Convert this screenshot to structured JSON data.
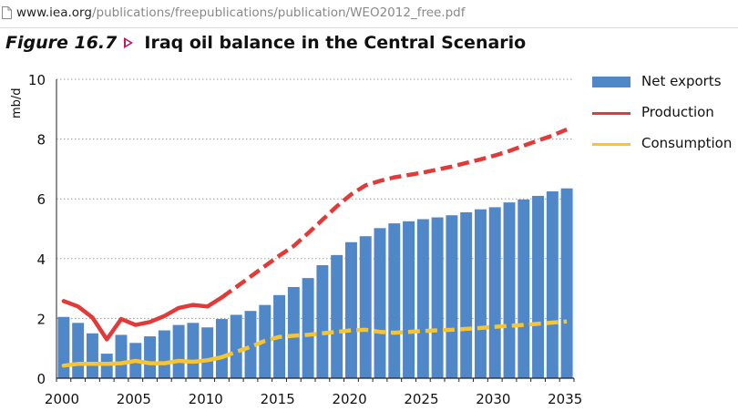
{
  "browser": {
    "url_host": "www.iea.org",
    "url_path": "/publications/freepublications/publication/WEO2012_free.pdf"
  },
  "figure": {
    "label": "Figure 16.7",
    "title": "Iraq oil balance in the Central Scenario"
  },
  "legend": {
    "net_exports": "Net exports",
    "production": "Production",
    "consumption": "Consumption"
  },
  "colors": {
    "net_exports": "#4f87c8",
    "production": "#e23a38",
    "consumption": "#f6c531",
    "figure_arrow": "#c2185b"
  },
  "chart_data": {
    "type": "bar",
    "title": "Iraq oil balance in the Central Scenario",
    "ylabel": "mb/d",
    "xlabel": "",
    "ylim": [
      0,
      10
    ],
    "yticks": [
      0,
      2,
      4,
      6,
      8,
      10
    ],
    "xticks": [
      2000,
      2005,
      2010,
      2015,
      2020,
      2025,
      2030,
      2035
    ],
    "grid": "horizontal dotted",
    "legend_position": "right",
    "x": [
      2000,
      2001,
      2002,
      2003,
      2004,
      2005,
      2006,
      2007,
      2008,
      2009,
      2010,
      2011,
      2012,
      2013,
      2014,
      2015,
      2016,
      2017,
      2018,
      2019,
      2020,
      2021,
      2022,
      2023,
      2024,
      2025,
      2026,
      2027,
      2028,
      2029,
      2030,
      2031,
      2032,
      2033,
      2034,
      2035
    ],
    "series": [
      {
        "name": "Net exports",
        "type": "bar",
        "values": [
          2.05,
          1.85,
          1.5,
          0.82,
          1.45,
          1.18,
          1.4,
          1.6,
          1.78,
          1.85,
          1.7,
          1.98,
          2.12,
          2.25,
          2.45,
          2.78,
          3.05,
          3.35,
          3.78,
          4.12,
          4.55,
          4.75,
          5.02,
          5.18,
          5.25,
          5.32,
          5.38,
          5.45,
          5.55,
          5.65,
          5.72,
          5.88,
          5.98,
          6.1,
          6.25,
          6.35
        ]
      },
      {
        "name": "Production",
        "type": "line",
        "style": "solid to 2011, dashed after",
        "values": [
          2.58,
          2.4,
          2.03,
          1.3,
          1.98,
          1.78,
          1.88,
          2.08,
          2.35,
          2.45,
          2.4,
          2.7,
          3.05,
          3.4,
          3.75,
          4.1,
          4.42,
          4.85,
          5.3,
          5.75,
          6.15,
          6.45,
          6.6,
          6.72,
          6.8,
          6.88,
          6.98,
          7.08,
          7.2,
          7.32,
          7.45,
          7.6,
          7.78,
          7.95,
          8.12,
          8.32
        ]
      },
      {
        "name": "Consumption",
        "type": "line",
        "style": "solid to 2011, dashed after",
        "values": [
          0.42,
          0.48,
          0.48,
          0.48,
          0.5,
          0.58,
          0.5,
          0.5,
          0.58,
          0.55,
          0.6,
          0.7,
          0.88,
          1.05,
          1.25,
          1.38,
          1.42,
          1.45,
          1.5,
          1.55,
          1.6,
          1.62,
          1.55,
          1.52,
          1.55,
          1.58,
          1.6,
          1.62,
          1.65,
          1.68,
          1.72,
          1.75,
          1.78,
          1.82,
          1.86,
          1.9
        ]
      }
    ]
  }
}
